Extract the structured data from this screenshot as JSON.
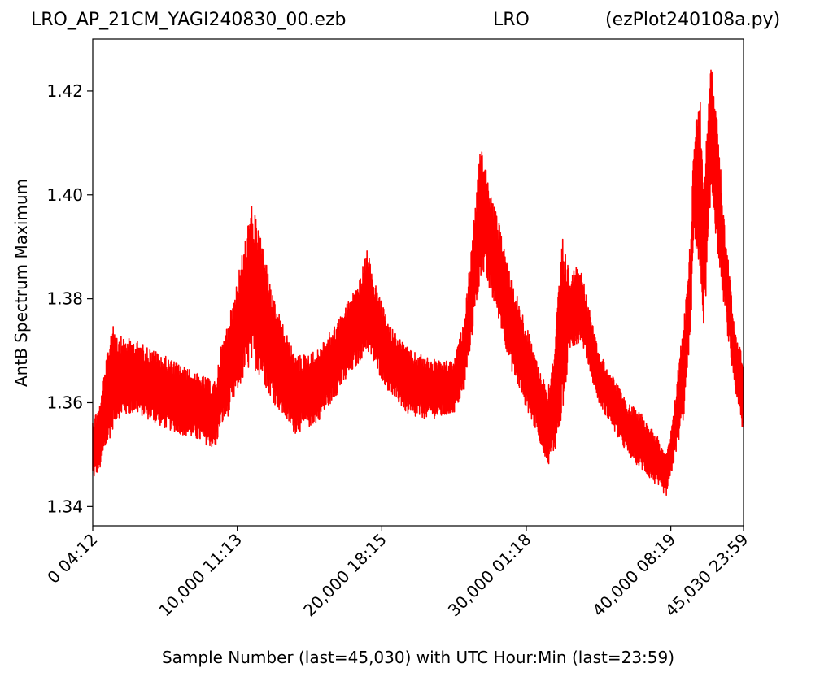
{
  "header": {
    "title_left": "LRO_AP_21CM_YAGI240830_00.ezb",
    "title_center": "LRO",
    "title_right": "(ezPlot240108a.py)"
  },
  "chart_data": {
    "type": "line",
    "title": "",
    "xlabel": "Sample Number (last=45,030) with UTC Hour:Min (last=23:59)",
    "ylabel": "AntB Spectrum Maximum",
    "xlim": [
      0,
      45030
    ],
    "ylim": [
      1.3363,
      1.43
    ],
    "grid": false,
    "line_color": "#ff0000",
    "x_ticks": [
      {
        "value": 0,
        "label": "0  04:12"
      },
      {
        "value": 10000,
        "label": "10,000  11:13"
      },
      {
        "value": 20000,
        "label": "20,000  18:15"
      },
      {
        "value": 30000,
        "label": "30,000  01:18"
      },
      {
        "value": 40000,
        "label": "40,000  08:19"
      },
      {
        "value": 45030,
        "label": "45,030  23:59"
      }
    ],
    "y_ticks": [
      {
        "value": 1.34,
        "label": "1.34"
      },
      {
        "value": 1.36,
        "label": "1.36"
      },
      {
        "value": 1.38,
        "label": "1.38"
      },
      {
        "value": 1.4,
        "label": "1.40"
      },
      {
        "value": 1.42,
        "label": "1.42"
      }
    ],
    "series": [
      {
        "x": [
          0,
          500,
          1400,
          1700,
          3000,
          5000,
          7000,
          8500,
          8800,
          9500,
          10000,
          10700,
          11000,
          11600,
          12500,
          14000,
          15500,
          17000,
          18500,
          19000,
          19300,
          20500,
          22000,
          24000,
          25000,
          25700,
          26200,
          26900,
          27500,
          28000,
          29000,
          31000,
          31500,
          31900,
          32500,
          33000,
          33800,
          34200,
          35000,
          36000,
          37000,
          38000,
          39000,
          39700,
          40100,
          40500,
          40900,
          41400,
          41600,
          42000,
          42300,
          42800,
          43200,
          43700,
          44200,
          44600,
          45030
        ],
        "low": [
          1.345,
          1.347,
          1.355,
          1.357,
          1.358,
          1.355,
          1.353,
          1.351,
          1.355,
          1.358,
          1.362,
          1.366,
          1.367,
          1.365,
          1.36,
          1.354,
          1.356,
          1.362,
          1.368,
          1.37,
          1.368,
          1.362,
          1.357,
          1.357,
          1.358,
          1.362,
          1.372,
          1.385,
          1.381,
          1.377,
          1.366,
          1.352,
          1.348,
          1.35,
          1.357,
          1.37,
          1.372,
          1.368,
          1.36,
          1.355,
          1.35,
          1.347,
          1.344,
          1.342,
          1.347,
          1.352,
          1.357,
          1.375,
          1.393,
          1.383,
          1.374,
          1.4,
          1.39,
          1.378,
          1.367,
          1.36,
          1.353
        ],
        "high": [
          1.357,
          1.36,
          1.377,
          1.373,
          1.372,
          1.369,
          1.366,
          1.364,
          1.37,
          1.377,
          1.384,
          1.394,
          1.398,
          1.393,
          1.38,
          1.369,
          1.37,
          1.376,
          1.384,
          1.39,
          1.385,
          1.375,
          1.37,
          1.368,
          1.368,
          1.376,
          1.39,
          1.411,
          1.4,
          1.396,
          1.384,
          1.366,
          1.363,
          1.37,
          1.392,
          1.385,
          1.387,
          1.38,
          1.37,
          1.365,
          1.36,
          1.358,
          1.354,
          1.35,
          1.356,
          1.367,
          1.376,
          1.394,
          1.412,
          1.42,
          1.404,
          1.426,
          1.415,
          1.395,
          1.381,
          1.372,
          1.369
        ]
      }
    ]
  }
}
